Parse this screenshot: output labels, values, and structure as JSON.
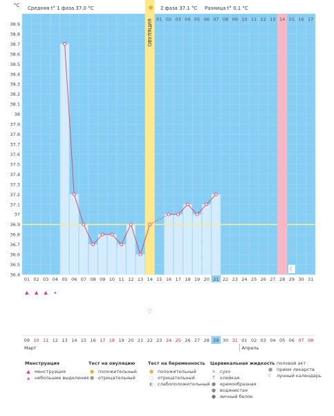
{
  "header": {
    "phase1_label": "Средняя t° 1 фаза 37.0 °C",
    "phase2_label": "2 фаза 37.1 °C",
    "diff_label": "Разница t° 0.1 °C",
    "unit": "°C",
    "ovulation_label": "ОВУЛЯЦИЯ"
  },
  "cycle_days": [
    "01",
    "02",
    "03",
    "04",
    "05",
    "06",
    "07",
    "08",
    "09",
    "10",
    "11",
    "12",
    "13",
    "14",
    "15",
    "16",
    "17",
    "18",
    "19",
    "20",
    "21",
    "22",
    "23",
    "24",
    "25",
    "26",
    "27",
    "28",
    "29",
    "30",
    "31"
  ],
  "phase2_days": [
    "01",
    "02",
    "03",
    "04",
    "05",
    "06",
    "07",
    "08",
    "09",
    "10",
    "11",
    "12",
    "13",
    "14",
    "15",
    "16",
    "17"
  ],
  "dates": [
    "09",
    "10",
    "11",
    "12",
    "13",
    "14",
    "15",
    "16",
    "17",
    "18",
    "19",
    "20",
    "21",
    "22",
    "23",
    "24",
    "25",
    "26",
    "27",
    "28",
    "29",
    "30",
    "31",
    "01",
    "02",
    "03",
    "04",
    "05",
    "06",
    "07",
    "08"
  ],
  "red_date_indices": [
    1,
    2,
    8,
    9,
    15,
    16,
    22,
    29,
    30
  ],
  "months": {
    "first": "Март",
    "second": "Апрель"
  },
  "today_index": 20,
  "ovulation_index": 13,
  "next_menstruation_index": 27,
  "moon_index": 28,
  "menstruation": {
    "heavy_indices": [
      0,
      1,
      2
    ],
    "light_indices": [
      3
    ]
  },
  "intercourse_indices": [
    13
  ],
  "coverline": 36.9,
  "chart_data": {
    "type": "line",
    "x": [
      5,
      6,
      7,
      8,
      9,
      10,
      11,
      12,
      13,
      14,
      16,
      17,
      18,
      19,
      20,
      21
    ],
    "y": [
      38.7,
      37.2,
      36.9,
      36.7,
      36.8,
      36.8,
      36.7,
      36.9,
      36.6,
      36.9,
      37.0,
      37.0,
      37.1,
      37.0,
      37.1,
      37.2
    ],
    "ylim": [
      36.4,
      39.0
    ],
    "yticks": [
      "36.4",
      "36.5",
      "36.6",
      "36.7",
      "36.8",
      "36.9",
      "37",
      "37.1",
      "37.2",
      "37.3",
      "37.4",
      "37.5",
      "37.6",
      "37.7",
      "37.8",
      "37.9",
      "38",
      "38.1",
      "38.2",
      "38.3",
      "38.4",
      "38.5",
      "38.6",
      "38.7",
      "38.8",
      "38.9"
    ],
    "colors": {
      "background": "#87CEF5",
      "bars": "#D4ECFB",
      "line": "#E04060",
      "coverline": "#F2EE9A",
      "ovulation": "#FFE98A",
      "next_period": "#F9B6C4"
    }
  },
  "legend": {
    "menstruation": {
      "title": "Менструация",
      "items": [
        "менструация",
        "небольшие выделения"
      ]
    },
    "ovulation_test": {
      "title": "Тест на овуляцию",
      "items": [
        "положительный",
        "отрицательный"
      ]
    },
    "pregnancy_test": {
      "title": "Тест на беременность",
      "items": [
        "положительный",
        "отрицательный",
        "слабоположительный"
      ]
    },
    "cervical_fluid": {
      "title": "Цервикальная жидкость",
      "items": [
        "сухо",
        "клейкая",
        "кремообразная",
        "водянистая",
        "яичный белок"
      ]
    },
    "other": {
      "items": [
        "половой акт",
        "прием лекарств",
        "лунный календарь"
      ]
    }
  }
}
